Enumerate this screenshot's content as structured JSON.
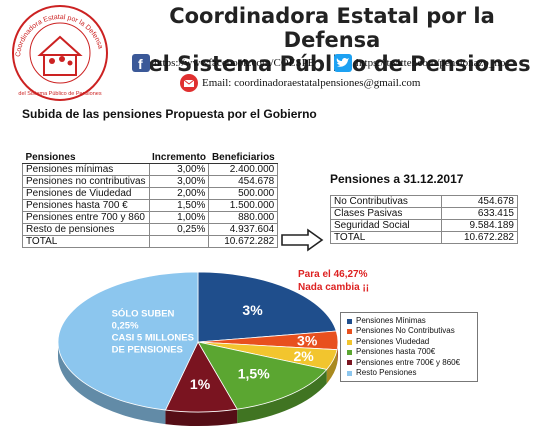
{
  "header": {
    "org_title_line1": "Coordinadora Estatal por la Defensa",
    "org_title_line2": "del Sistema Público de Pensiones",
    "logo_text": "Coordinadora Estatal por la Defensa del Sistema Público de Pensiones",
    "facebook_url": "https://wwwfacebook.com/COESPE",
    "twitter_url": "https://twitter.com/pensionazo_no",
    "email_label": "Email: coordinadoraestatalpensiones@gmail.com"
  },
  "subtitle": "Subida de las pensiones Propuesta por el Gobierno",
  "left_table": {
    "headers": [
      "Pensiones",
      "Incremento",
      "Beneficiarios"
    ],
    "rows": [
      [
        "Pensiones mínimas",
        "3,00%",
        "2.400.000"
      ],
      [
        "Pensiones no contributivas",
        "3,00%",
        "454.678"
      ],
      [
        "Pensiones de Viudedad",
        "2,00%",
        "500.000"
      ],
      [
        "Pensiones hasta 700 €",
        "1,50%",
        "1.500.000"
      ],
      [
        "Pensiones entre 700 y 860",
        "1,00%",
        "880.000"
      ],
      [
        "Resto de pensiones",
        "0,25%",
        "4.937.604"
      ],
      [
        "TOTAL",
        "",
        "10.672.282"
      ]
    ]
  },
  "right_table": {
    "title": "Pensiones a 31.12.2017",
    "rows": [
      [
        "No Contributivas",
        "454.678"
      ],
      [
        "Clases Pasivas",
        "633.415"
      ],
      [
        "Seguridad Social",
        "9.584.189"
      ],
      [
        "TOTAL",
        "10.672.282"
      ]
    ]
  },
  "annotation": {
    "line1": "Para el 46,27%",
    "line2": "Nada cambia ¡¡"
  },
  "chart_data": {
    "type": "pie",
    "slices": [
      {
        "name": "Pensiones Mínimas",
        "value": 2400000,
        "label": "3%",
        "color": "#1f4e8c"
      },
      {
        "name": "Pensiones No Contributivas",
        "value": 454678,
        "label": "3%",
        "color": "#e8501e"
      },
      {
        "name": "Pensiones Viudedad",
        "value": 500000,
        "label": "2%",
        "color": "#f2c52e"
      },
      {
        "name": "Pensiones hasta 700€",
        "value": 1500000,
        "label": "1,5%",
        "color": "#5ba631"
      },
      {
        "name": "Pensiones entre 700€ y 860€",
        "value": 880000,
        "label": "1%",
        "color": "#7a1420"
      },
      {
        "name": "Resto Pensiones",
        "value": 4937604,
        "label": "",
        "color": "#8cc6ee"
      }
    ],
    "slice_text": [
      "SÓLO SUBEN",
      "0,25%",
      "CASI 5 MILLONES",
      "DE PENSIONES"
    ]
  }
}
